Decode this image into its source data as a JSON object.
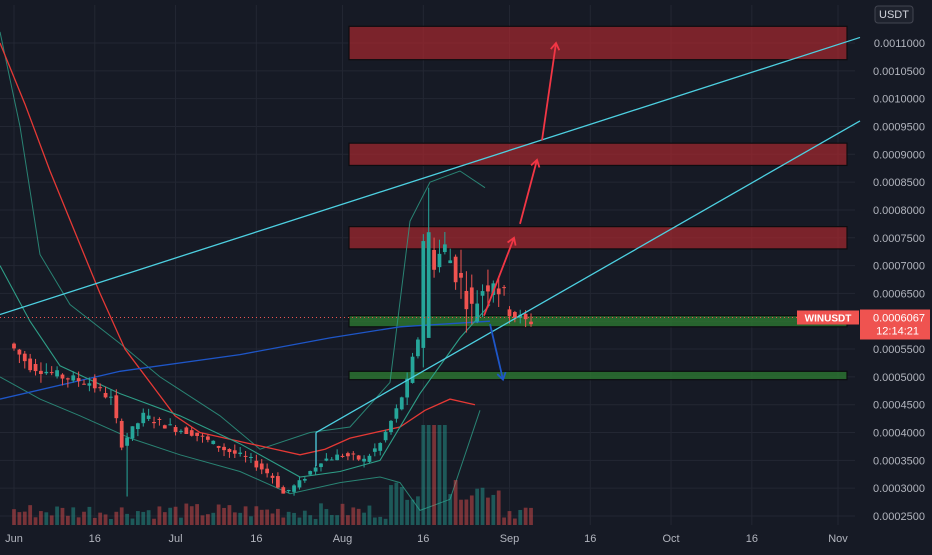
{
  "chart_data": {
    "type": "candlestick",
    "symbol": "WINUSDT",
    "currency": "USDT",
    "last_price": "0.0006067",
    "countdown": "12:14:21",
    "y_axis_labels": [
      "0.0011000",
      "0.0010500",
      "0.0010000",
      "0.0009500",
      "0.0009000",
      "0.0008500",
      "0.0008000",
      "0.0007500",
      "0.0007000",
      "0.0006500",
      "0.0006000",
      "0.0005500",
      "0.0005000",
      "0.0004500",
      "0.0004000",
      "0.0003500",
      "0.0003000",
      "0.0002500"
    ],
    "x_axis_labels": [
      "Jun",
      "16",
      "Jul",
      "16",
      "Aug",
      "16",
      "Sep",
      "16",
      "Oct",
      "16",
      "Nov"
    ],
    "ylim": [
      0.00024,
      0.00118
    ],
    "date_range": [
      "2021-06-01",
      "2021-11-01"
    ],
    "ohlc_sample": [
      {
        "date": "2021-06-01",
        "open": 0.00056,
        "high": 0.0006,
        "low": 0.0005,
        "close": 0.00052
      },
      {
        "date": "2021-06-16",
        "open": 0.0005,
        "high": 0.00057,
        "low": 0.00046,
        "close": 0.00049
      },
      {
        "date": "2021-06-22",
        "open": 0.00039,
        "high": 0.00041,
        "low": 0.00028,
        "close": 0.00036
      },
      {
        "date": "2021-07-01",
        "open": 0.00041,
        "high": 0.00045,
        "low": 0.00039,
        "close": 0.0004
      },
      {
        "date": "2021-07-16",
        "open": 0.00035,
        "high": 0.00037,
        "low": 0.00033,
        "close": 0.00034
      },
      {
        "date": "2021-07-21",
        "open": 0.0003,
        "high": 0.00031,
        "low": 0.00027,
        "close": 0.00029
      },
      {
        "date": "2021-08-01",
        "open": 0.00034,
        "high": 0.00036,
        "low": 0.00033,
        "close": 0.00035
      },
      {
        "date": "2021-08-08",
        "open": 0.00045,
        "high": 0.00049,
        "low": 0.00043,
        "close": 0.00048
      },
      {
        "date": "2021-08-11",
        "open": 0.00057,
        "high": 0.00084,
        "low": 0.00056,
        "close": 0.00075
      },
      {
        "date": "2021-08-16",
        "open": 0.0007,
        "high": 0.00074,
        "low": 0.00066,
        "close": 0.00068
      },
      {
        "date": "2021-08-20",
        "open": 0.00063,
        "high": 0.00069,
        "low": 0.0006,
        "close": 0.00066
      },
      {
        "date": "2021-08-25",
        "open": 0.00064,
        "high": 0.00066,
        "low": 0.00059,
        "close": 0.00061
      }
    ],
    "resistance_zones": [
      [
        0.00107,
        0.00113
      ],
      [
        0.00088,
        0.00092
      ],
      [
        0.00073,
        0.00077
      ]
    ],
    "support_zones": [
      [
        0.00059,
        0.00061
      ],
      [
        0.000495,
        0.00051
      ]
    ],
    "colors": {
      "up": "#26a69a",
      "down": "#ef5350",
      "background": "#161a25",
      "grid": "#232733",
      "resistance": "#b2282e",
      "support": "#2e7d32",
      "trendline": "#4dd0e1",
      "ma_red": "#e53935",
      "ma_blue": "#1e56c8",
      "bollinger": "#2e9e87",
      "arrow_red": "#f23645",
      "arrow_blue": "#1e56c8"
    }
  }
}
